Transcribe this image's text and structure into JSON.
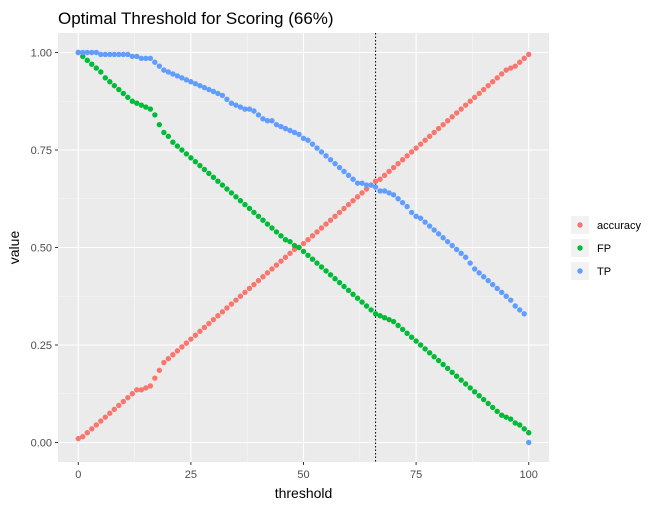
{
  "chart_data": {
    "type": "scatter",
    "title": "Optimal Threshold for Scoring (66%)",
    "xlabel": "threshold",
    "ylabel": "value",
    "xlim": [
      -4.5,
      104.5
    ],
    "ylim": [
      -0.05,
      1.05
    ],
    "x_ticks": [
      0,
      25,
      50,
      75,
      100
    ],
    "x_tick_labels": [
      "0",
      "25",
      "50",
      "75",
      "100"
    ],
    "y_ticks": [
      0,
      0.25,
      0.5,
      0.75,
      1.0
    ],
    "y_tick_labels": [
      "0.00",
      "0.25",
      "0.50",
      "0.75",
      "1.00"
    ],
    "vline": {
      "x": 66,
      "style": "dotted",
      "color": "#000000"
    },
    "panel_background": "#ebebeb",
    "grid": true,
    "legend_position": "right",
    "x": [
      0,
      1,
      2,
      3,
      4,
      5,
      6,
      7,
      8,
      9,
      10,
      11,
      12,
      13,
      14,
      15,
      16,
      17,
      18,
      19,
      20,
      21,
      22,
      23,
      24,
      25,
      26,
      27,
      28,
      29,
      30,
      31,
      32,
      33,
      34,
      35,
      36,
      37,
      38,
      39,
      40,
      41,
      42,
      43,
      44,
      45,
      46,
      47,
      48,
      49,
      50,
      51,
      52,
      53,
      54,
      55,
      56,
      57,
      58,
      59,
      60,
      61,
      62,
      63,
      64,
      65,
      66,
      67,
      68,
      69,
      70,
      71,
      72,
      73,
      74,
      75,
      76,
      77,
      78,
      79,
      80,
      81,
      82,
      83,
      84,
      85,
      86,
      87,
      88,
      89,
      90,
      91,
      92,
      93,
      94,
      95,
      96,
      97,
      98,
      99,
      100
    ],
    "series": [
      {
        "name": "accuracy",
        "color": "#f8766d",
        "values": [
          0.01,
          0.015,
          0.025,
          0.035,
          0.045,
          0.055,
          0.065,
          0.075,
          0.085,
          0.095,
          0.105,
          0.115,
          0.125,
          0.135,
          0.135,
          0.14,
          0.145,
          0.165,
          0.185,
          0.205,
          0.215,
          0.225,
          0.235,
          0.245,
          0.255,
          0.265,
          0.275,
          0.285,
          0.295,
          0.305,
          0.315,
          0.325,
          0.335,
          0.345,
          0.355,
          0.365,
          0.375,
          0.385,
          0.395,
          0.405,
          0.415,
          0.425,
          0.435,
          0.445,
          0.455,
          0.465,
          0.475,
          0.485,
          0.495,
          0.5,
          0.51,
          0.52,
          0.53,
          0.54,
          0.55,
          0.56,
          0.57,
          0.58,
          0.59,
          0.6,
          0.61,
          0.62,
          0.63,
          0.64,
          0.65,
          0.66,
          0.67,
          0.675,
          0.685,
          0.695,
          0.705,
          0.715,
          0.725,
          0.735,
          0.745,
          0.755,
          0.765,
          0.775,
          0.785,
          0.795,
          0.805,
          0.815,
          0.825,
          0.835,
          0.845,
          0.855,
          0.865,
          0.875,
          0.885,
          0.895,
          0.905,
          0.915,
          0.925,
          0.935,
          0.945,
          0.955,
          0.96,
          0.965,
          0.975,
          0.985,
          0.995
        ]
      },
      {
        "name": "FP",
        "color": "#00ba38",
        "values": [
          1.0,
          0.99,
          0.98,
          0.97,
          0.96,
          0.95,
          0.935,
          0.925,
          0.915,
          0.905,
          0.895,
          0.885,
          0.875,
          0.87,
          0.865,
          0.86,
          0.855,
          0.84,
          0.815,
          0.795,
          0.785,
          0.77,
          0.76,
          0.75,
          0.74,
          0.73,
          0.72,
          0.71,
          0.7,
          0.69,
          0.68,
          0.67,
          0.66,
          0.65,
          0.64,
          0.63,
          0.62,
          0.61,
          0.6,
          0.59,
          0.58,
          0.57,
          0.56,
          0.55,
          0.54,
          0.53,
          0.52,
          0.515,
          0.505,
          0.5,
          0.49,
          0.48,
          0.47,
          0.46,
          0.45,
          0.44,
          0.43,
          0.42,
          0.41,
          0.4,
          0.39,
          0.38,
          0.37,
          0.36,
          0.35,
          0.34,
          0.33,
          0.325,
          0.32,
          0.315,
          0.31,
          0.3,
          0.29,
          0.28,
          0.27,
          0.26,
          0.25,
          0.24,
          0.23,
          0.22,
          0.21,
          0.2,
          0.19,
          0.18,
          0.17,
          0.16,
          0.15,
          0.14,
          0.13,
          0.12,
          0.11,
          0.1,
          0.09,
          0.08,
          0.07,
          0.065,
          0.06,
          0.05,
          0.045,
          0.035,
          0.025
        ]
      },
      {
        "name": "TP",
        "color": "#619cff",
        "values": [
          1.0,
          1.0,
          1.0,
          1.0,
          1.0,
          0.995,
          0.995,
          0.995,
          0.995,
          0.995,
          0.995,
          0.995,
          0.99,
          0.99,
          0.985,
          0.985,
          0.985,
          0.975,
          0.965,
          0.955,
          0.95,
          0.945,
          0.94,
          0.935,
          0.93,
          0.925,
          0.92,
          0.915,
          0.91,
          0.905,
          0.9,
          0.895,
          0.89,
          0.88,
          0.87,
          0.865,
          0.86,
          0.855,
          0.855,
          0.85,
          0.84,
          0.83,
          0.825,
          0.825,
          0.815,
          0.81,
          0.805,
          0.8,
          0.795,
          0.79,
          0.78,
          0.775,
          0.765,
          0.755,
          0.745,
          0.735,
          0.725,
          0.715,
          0.705,
          0.695,
          0.685,
          0.675,
          0.665,
          0.665,
          0.66,
          0.66,
          0.655,
          0.645,
          0.645,
          0.64,
          0.635,
          0.625,
          0.615,
          0.605,
          0.59,
          0.58,
          0.575,
          0.565,
          0.555,
          0.545,
          0.535,
          0.525,
          0.515,
          0.505,
          0.495,
          0.485,
          0.475,
          0.46,
          0.445,
          0.435,
          0.425,
          0.415,
          0.405,
          0.395,
          0.385,
          0.375,
          0.365,
          0.35,
          0.34,
          0.33,
          0.0
        ]
      }
    ]
  }
}
